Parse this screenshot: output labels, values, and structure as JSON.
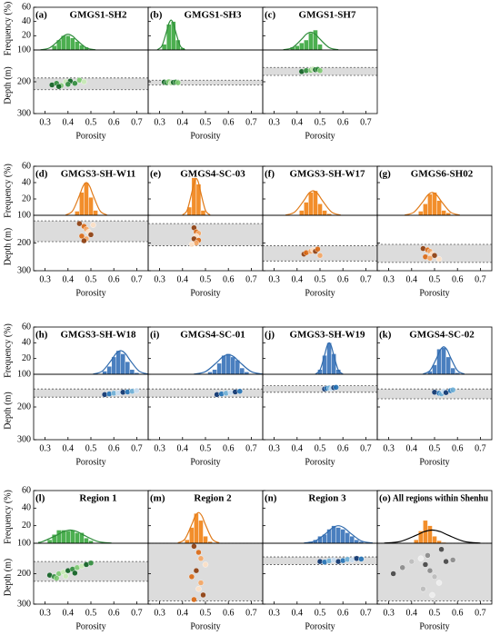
{
  "axes": {
    "frequency_label": "Frequency (%)",
    "depth_label": "Depth (m)",
    "porosity_label": "Porosity",
    "freq_ylim": [
      0,
      60
    ],
    "freq_yticks": [
      20,
      40,
      60
    ],
    "depth_ylim": [
      100,
      300
    ],
    "depth_yticks": [
      100,
      200,
      300
    ],
    "xlim": [
      0.25,
      0.75
    ],
    "xticks": [
      0.3,
      0.4,
      0.5,
      0.6,
      0.7
    ]
  },
  "palettes": {
    "green": [
      "#0b5d1e",
      "#2e8b3a",
      "#7bc96f",
      "#c7e9b4"
    ],
    "orange": [
      "#8c3b0a",
      "#d9660f",
      "#f4a460",
      "#fde0c5"
    ],
    "blue": [
      "#08306b",
      "#2171b5",
      "#6baed6",
      "#c6dbef"
    ],
    "gray": [
      "#444444",
      "#888888",
      "#bbbbbb",
      "#eeeeee"
    ]
  },
  "chart_data": [
    {
      "type": "histogram",
      "label": "(a)",
      "title": "GMGS1-SH2",
      "color": "#4caf50",
      "bins": [
        0.33,
        0.35,
        0.37,
        0.39,
        0.41,
        0.43,
        0.45,
        0.47,
        0.49
      ],
      "values": [
        6,
        14,
        20,
        20,
        17,
        12,
        7,
        4
      ],
      "fit": {
        "color": "#2e8b3a",
        "x": [
          0.28,
          0.32,
          0.36,
          0.38,
          0.4,
          0.42,
          0.44,
          0.48,
          0.52
        ],
        "values": [
          0.2,
          3.0,
          13.4,
          19.4,
          22,
          19.4,
          13.4,
          3.0,
          0.2
        ]
      },
      "depth": {
        "type": "scatter",
        "palette": "green",
        "band": [
          188,
          225
        ],
        "x": [
          0.33,
          0.35,
          0.37,
          0.39,
          0.41,
          0.43,
          0.45,
          0.47,
          0.36,
          0.4
        ],
        "y": [
          210,
          205,
          212,
          200,
          198,
          205,
          195,
          200,
          215,
          208
        ]
      }
    },
    {
      "type": "histogram",
      "label": "(b)",
      "title": "GMGS1-SH3",
      "color": "#4caf50",
      "bins": [
        0.31,
        0.33,
        0.35,
        0.37,
        0.39,
        0.41
      ],
      "values": [
        8,
        36,
        40,
        14,
        3
      ],
      "fit": {
        "color": "#2e8b3a",
        "x": [
          0.29,
          0.31,
          0.33,
          0.34,
          0.35,
          0.36,
          0.37,
          0.39,
          0.41
        ],
        "values": [
          0.5,
          5.7,
          25.5,
          37.0,
          42,
          37.0,
          25.5,
          5.7,
          0.5
        ]
      },
      "depth": {
        "type": "scatter",
        "palette": "green",
        "band": [
          195,
          210
        ],
        "x": [
          0.32,
          0.33,
          0.34,
          0.35,
          0.36,
          0.37,
          0.38
        ],
        "y": [
          201,
          203,
          200,
          204,
          202,
          201,
          203
        ]
      }
    },
    {
      "type": "histogram",
      "label": "(c)",
      "title": "GMGS1-SH7",
      "color": "#4caf50",
      "bins": [
        0.37,
        0.39,
        0.41,
        0.43,
        0.45,
        0.47,
        0.49,
        0.51
      ],
      "values": [
        4,
        6,
        10,
        14,
        24,
        28,
        8
      ],
      "fit": {
        "color": "#2e8b3a",
        "x": [
          0.34,
          0.38,
          0.42,
          0.44,
          0.46,
          0.48,
          0.5,
          0.54,
          0.58
        ],
        "values": [
          0.3,
          3.4,
          15.2,
          22.1,
          25,
          22.1,
          15.2,
          3.4,
          0.3
        ]
      },
      "depth": {
        "type": "scatter",
        "palette": "green",
        "band": [
          155,
          180
        ],
        "x": [
          0.42,
          0.44,
          0.46,
          0.47,
          0.48,
          0.49,
          0.5
        ],
        "y": [
          168,
          165,
          164,
          160,
          162,
          161,
          165
        ]
      }
    },
    {
      "type": "histogram",
      "label": "(d)",
      "title": "GMGS3-SH-W11",
      "color": "#f28e2b",
      "bins": [
        0.43,
        0.45,
        0.47,
        0.49,
        0.51,
        0.53
      ],
      "values": [
        5,
        28,
        40,
        22,
        6
      ],
      "fit": {
        "color": "#e07b1a",
        "x": [
          0.39,
          0.42,
          0.45,
          0.465,
          0.48,
          0.495,
          0.51,
          0.54,
          0.57
        ],
        "values": [
          0.4,
          5.4,
          24.3,
          35.3,
          40,
          35.3,
          24.3,
          5.4,
          0.4
        ]
      },
      "depth": {
        "type": "scatter",
        "palette": "orange",
        "band": [
          120,
          195
        ],
        "x": [
          0.45,
          0.47,
          0.48,
          0.49,
          0.5,
          0.46,
          0.48,
          0.51,
          0.47
        ],
        "y": [
          130,
          140,
          150,
          160,
          170,
          175,
          185,
          135,
          192
        ]
      }
    },
    {
      "type": "histogram",
      "label": "(e)",
      "title": "GMGS4-SC-03",
      "color": "#f28e2b",
      "bins": [
        0.42,
        0.44,
        0.46,
        0.48,
        0.5
      ],
      "values": [
        10,
        46,
        38,
        6
      ],
      "fit": {
        "color": "#e07b1a",
        "x": [
          0.4,
          0.42,
          0.44,
          0.45,
          0.46,
          0.47,
          0.48,
          0.5,
          0.52
        ],
        "values": [
          0.5,
          6.1,
          27.3,
          39.7,
          45,
          39.7,
          27.3,
          6.1,
          0.5
        ]
      },
      "depth": {
        "type": "scatter",
        "palette": "orange",
        "band": [
          130,
          210
        ],
        "x": [
          0.45,
          0.46,
          0.47,
          0.46,
          0.45,
          0.47,
          0.46,
          0.44
        ],
        "y": [
          145,
          160,
          165,
          175,
          185,
          190,
          200,
          205
        ]
      }
    },
    {
      "type": "histogram",
      "label": "(f)",
      "title": "GMGS3-SH-W17",
      "color": "#f28e2b",
      "bins": [
        0.41,
        0.43,
        0.45,
        0.47,
        0.49,
        0.51,
        0.53,
        0.55
      ],
      "values": [
        6,
        16,
        28,
        30,
        14,
        6,
        2
      ],
      "fit": {
        "color": "#e07b1a",
        "x": [
          0.35,
          0.39,
          0.43,
          0.45,
          0.47,
          0.49,
          0.51,
          0.55,
          0.59
        ],
        "values": [
          0.3,
          4.1,
          18.2,
          26.5,
          30,
          26.5,
          18.2,
          4.1,
          0.3
        ]
      },
      "depth": {
        "type": "scatter",
        "palette": "orange",
        "band": [
          210,
          265
        ],
        "x": [
          0.43,
          0.44,
          0.46,
          0.47,
          0.48,
          0.49,
          0.5
        ],
        "y": [
          240,
          235,
          230,
          225,
          230,
          222,
          245
        ]
      }
    },
    {
      "type": "histogram",
      "label": "(g)",
      "title": "GMGS6-SH02",
      "color": "#f28e2b",
      "bins": [
        0.43,
        0.45,
        0.47,
        0.49,
        0.51,
        0.53,
        0.55,
        0.57
      ],
      "values": [
        5,
        14,
        26,
        28,
        18,
        6,
        3
      ],
      "fit": {
        "color": "#e07b1a",
        "x": [
          0.37,
          0.41,
          0.45,
          0.47,
          0.49,
          0.51,
          0.53,
          0.57,
          0.61
        ],
        "values": [
          0.3,
          3.8,
          17.0,
          24.7,
          28,
          24.7,
          17.0,
          3.8,
          0.3
        ]
      },
      "depth": {
        "type": "scatter",
        "palette": "orange",
        "band": [
          205,
          270
        ],
        "x": [
          0.45,
          0.47,
          0.48,
          0.49,
          0.5,
          0.46,
          0.48,
          0.52
        ],
        "y": [
          220,
          225,
          230,
          240,
          245,
          250,
          255,
          258
        ]
      }
    },
    {
      "type": "histogram",
      "label": "(h)",
      "title": "GMGS3-SH-W18",
      "color": "#4a7fbf",
      "bins": [
        0.55,
        0.57,
        0.59,
        0.61,
        0.63,
        0.65,
        0.67,
        0.69,
        0.71
      ],
      "values": [
        4,
        10,
        22,
        30,
        26,
        16,
        6,
        2
      ],
      "fit": {
        "color": "#2f6aad",
        "x": [
          0.51,
          0.55,
          0.59,
          0.61,
          0.63,
          0.65,
          0.67,
          0.71,
          0.75
        ],
        "values": [
          0.3,
          4.1,
          18.2,
          26.5,
          30,
          26.5,
          18.2,
          4.1,
          0.3
        ]
      },
      "depth": {
        "type": "scatter",
        "palette": "blue",
        "band": [
          145,
          170
        ],
        "x": [
          0.56,
          0.58,
          0.6,
          0.62,
          0.64,
          0.66,
          0.68,
          0.7
        ],
        "y": [
          162,
          160,
          158,
          157,
          155,
          154,
          152,
          150
        ]
      }
    },
    {
      "type": "histogram",
      "label": "(i)",
      "title": "GMGS4-SC-01",
      "color": "#4a7fbf",
      "bins": [
        0.51,
        0.53,
        0.55,
        0.57,
        0.59,
        0.61,
        0.63,
        0.65,
        0.67,
        0.69
      ],
      "values": [
        3,
        6,
        14,
        24,
        26,
        22,
        18,
        8,
        3
      ],
      "fit": {
        "color": "#2f6aad",
        "x": [
          0.45,
          0.5,
          0.55,
          0.575,
          0.6,
          0.625,
          0.65,
          0.7,
          0.75
        ],
        "values": [
          0.3,
          3.4,
          15.2,
          22.1,
          25,
          22.1,
          15.2,
          3.4,
          0.3
        ]
      },
      "depth": {
        "type": "scatter",
        "palette": "blue",
        "band": [
          145,
          170
        ],
        "x": [
          0.55,
          0.57,
          0.59,
          0.61,
          0.63,
          0.65
        ],
        "y": [
          162,
          160,
          158,
          156,
          154,
          152
        ]
      }
    },
    {
      "type": "histogram",
      "label": "(j)",
      "title": "GMGS3-SH-W19",
      "color": "#4a7fbf",
      "bins": [
        0.49,
        0.51,
        0.53,
        0.55,
        0.57,
        0.59
      ],
      "values": [
        6,
        24,
        40,
        26,
        6
      ],
      "fit": {
        "color": "#2f6aad",
        "x": [
          0.48,
          0.5,
          0.52,
          0.53,
          0.54,
          0.55,
          0.56,
          0.58,
          0.6
        ],
        "values": [
          0.4,
          5.4,
          24.3,
          35.3,
          40,
          35.3,
          24.3,
          5.4,
          0.4
        ]
      },
      "depth": {
        "type": "scatter",
        "palette": "blue",
        "band": [
          135,
          155
        ],
        "x": [
          0.52,
          0.53,
          0.54,
          0.55,
          0.56,
          0.57
        ],
        "y": [
          145,
          143,
          142,
          144,
          141,
          140
        ]
      }
    },
    {
      "type": "histogram",
      "label": "(k)",
      "title": "GMGS4-SC-02",
      "color": "#4a7fbf",
      "bins": [
        0.47,
        0.49,
        0.51,
        0.53,
        0.55,
        0.57,
        0.59,
        0.61
      ],
      "values": [
        4,
        12,
        32,
        34,
        22,
        8,
        2
      ],
      "fit": {
        "color": "#2f6aad",
        "x": [
          0.45,
          0.48,
          0.51,
          0.525,
          0.54,
          0.555,
          0.57,
          0.6,
          0.63
        ],
        "values": [
          0.4,
          4.7,
          21.2,
          30.9,
          35,
          30.9,
          21.2,
          4.7,
          0.4
        ]
      },
      "depth": {
        "type": "scatter",
        "palette": "blue",
        "band": [
          145,
          175
        ],
        "x": [
          0.5,
          0.52,
          0.53,
          0.54,
          0.55,
          0.57,
          0.58
        ],
        "y": [
          155,
          158,
          160,
          152,
          156,
          150,
          148
        ]
      }
    },
    {
      "type": "histogram",
      "label": "(l)",
      "title": "Region 1",
      "color": "#4caf50",
      "bins": [
        0.31,
        0.33,
        0.35,
        0.37,
        0.39,
        0.41,
        0.43,
        0.45,
        0.47,
        0.49,
        0.51
      ],
      "values": [
        4,
        10,
        15,
        15,
        14,
        15,
        12,
        12,
        6,
        3
      ],
      "fit": {
        "color": "#2e8b3a",
        "x": [
          0.27,
          0.29,
          0.35,
          0.38,
          0.41,
          0.44,
          0.47,
          0.53,
          0.59
        ],
        "values": [
          0.9,
          2.0,
          9.1,
          13.2,
          15,
          13.2,
          9.1,
          2.0,
          0.2
        ]
      },
      "depth": {
        "type": "scatter",
        "palette": "green",
        "band": [
          160,
          225
        ],
        "x": [
          0.32,
          0.34,
          0.36,
          0.38,
          0.4,
          0.42,
          0.44,
          0.46,
          0.48,
          0.5,
          0.35,
          0.39,
          0.43
        ],
        "y": [
          205,
          210,
          200,
          195,
          190,
          185,
          180,
          175,
          170,
          165,
          215,
          208,
          198
        ]
      }
    },
    {
      "type": "histogram",
      "label": "(m)",
      "title": "Region 2",
      "color": "#f28e2b",
      "bins": [
        0.41,
        0.43,
        0.45,
        0.47,
        0.49,
        0.51,
        0.53
      ],
      "values": [
        4,
        18,
        34,
        26,
        8,
        2
      ],
      "fit": {
        "color": "#e07b1a",
        "x": [
          0.38,
          0.41,
          0.44,
          0.455,
          0.47,
          0.485,
          0.5,
          0.53,
          0.56
        ],
        "values": [
          0.4,
          4.7,
          21.2,
          30.9,
          35,
          30.9,
          21.2,
          4.7,
          0.4
        ]
      },
      "depth": {
        "type": "scatter",
        "palette": "orange",
        "band": [
          100,
          290
        ],
        "x": [
          0.45,
          0.47,
          0.48,
          0.5,
          0.46,
          0.44,
          0.48,
          0.47,
          0.49,
          0.45
        ],
        "y": [
          110,
          130,
          150,
          170,
          190,
          210,
          230,
          250,
          270,
          285
        ]
      }
    },
    {
      "type": "histogram",
      "label": "(n)",
      "title": "Region 3",
      "color": "#4a7fbf",
      "bins": [
        0.45,
        0.47,
        0.49,
        0.51,
        0.53,
        0.55,
        0.57,
        0.59,
        0.61,
        0.63,
        0.65,
        0.67,
        0.69
      ],
      "values": [
        2,
        4,
        8,
        10,
        16,
        20,
        18,
        16,
        12,
        8,
        4,
        2
      ],
      "fit": {
        "color": "#2f6aad",
        "x": [
          0.43,
          0.48,
          0.53,
          0.555,
          0.58,
          0.605,
          0.63,
          0.68,
          0.73
        ],
        "values": [
          0.2,
          2.7,
          12.1,
          17.6,
          20,
          17.6,
          12.1,
          2.7,
          0.2
        ]
      },
      "depth": {
        "type": "scatter",
        "palette": "blue",
        "band": [
          145,
          170
        ],
        "x": [
          0.5,
          0.52,
          0.54,
          0.56,
          0.58,
          0.6,
          0.62,
          0.64,
          0.66,
          0.68
        ],
        "y": [
          160,
          162,
          158,
          155,
          160,
          157,
          153,
          155,
          150,
          152
        ]
      }
    },
    {
      "type": "histogram",
      "label": "(o)",
      "title": "All regions within Shenhu",
      "color": "#f28e2b",
      "bins": [
        0.41,
        0.43,
        0.45,
        0.47,
        0.49,
        0.51,
        0.53,
        0.55
      ],
      "values": [
        4,
        14,
        26,
        20,
        8,
        3,
        1
      ],
      "fit": {
        "color": "#000000",
        "x": [
          0.28,
          0.35,
          0.42,
          0.455,
          0.49,
          0.525,
          0.56,
          0.63,
          0.7
        ],
        "values": [
          0.2,
          2.0,
          9.1,
          13.2,
          15,
          13.2,
          9.1,
          2.0,
          0.2
        ]
      },
      "depth": {
        "type": "scatter",
        "palette": "gray",
        "band": [
          100,
          290
        ],
        "x": [
          0.32,
          0.36,
          0.4,
          0.44,
          0.46,
          0.48,
          0.5,
          0.52,
          0.55,
          0.58,
          0.45,
          0.49,
          0.53,
          0.47
        ],
        "y": [
          200,
          180,
          160,
          150,
          170,
          190,
          210,
          230,
          160,
          155,
          250,
          270,
          120,
          140
        ]
      }
    }
  ]
}
